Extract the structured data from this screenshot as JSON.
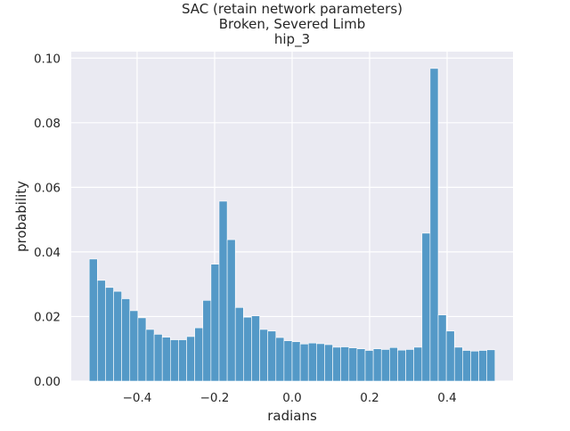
{
  "chart_data": {
    "type": "bar",
    "title": [
      "SAC (retain network parameters)",
      "Broken, Severed Limb",
      "hip_3"
    ],
    "xlabel": "radians",
    "ylabel": "probability",
    "xlim": [
      -0.57,
      0.57
    ],
    "ylim": [
      0,
      0.102
    ],
    "xticks": [
      -0.4,
      -0.2,
      0.0,
      0.2,
      0.4
    ],
    "xtick_labels": [
      "−0.4",
      "−0.2",
      "0.0",
      "0.2",
      "0.4"
    ],
    "yticks": [
      0.0,
      0.02,
      0.04,
      0.06,
      0.08,
      0.1
    ],
    "ytick_labels": [
      "0.00",
      "0.02",
      "0.04",
      "0.06",
      "0.08",
      "0.10"
    ],
    "grid": true,
    "bar_color": "#5499c7",
    "plot_background": "#eaeaf2",
    "bin_range": [
      -0.5236,
      0.5236
    ],
    "bins": 50,
    "values": [
      0.0378,
      0.0312,
      0.029,
      0.0278,
      0.0255,
      0.0218,
      0.0196,
      0.016,
      0.0145,
      0.0136,
      0.0128,
      0.0128,
      0.0138,
      0.0165,
      0.025,
      0.0362,
      0.0557,
      0.0438,
      0.0228,
      0.0198,
      0.0202,
      0.016,
      0.0155,
      0.0135,
      0.0125,
      0.0122,
      0.0115,
      0.0118,
      0.0116,
      0.0113,
      0.0105,
      0.0106,
      0.0103,
      0.01,
      0.0095,
      0.01,
      0.0098,
      0.0104,
      0.0096,
      0.0098,
      0.0105,
      0.0458,
      0.0968,
      0.0205,
      0.0155,
      0.0105,
      0.0095,
      0.0093,
      0.0095,
      0.0097
    ]
  }
}
